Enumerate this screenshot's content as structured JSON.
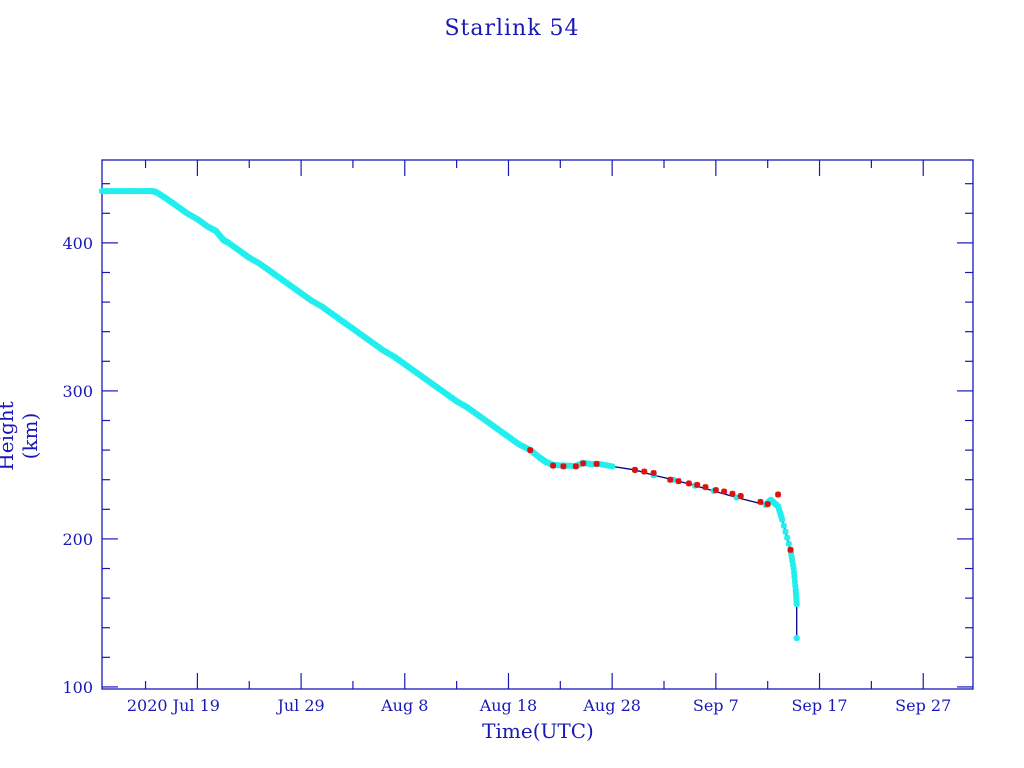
{
  "chart_data": {
    "type": "scatter",
    "title": "Starlink 54",
    "xlabel": "Time(UTC)",
    "ylabel": "Height (km)",
    "x_units": "days since 2020 Jul 19",
    "xlim": [
      -9.2,
      74.8
    ],
    "ylim": [
      98.6,
      456
    ],
    "x_major_ticks": [
      0,
      10,
      20,
      30,
      40,
      50,
      60,
      70
    ],
    "x_tick_labels": [
      "2020 Jul 19",
      "Jul 29",
      "Aug  8",
      "Aug 18",
      "Aug 28",
      "Sep  7",
      "Sep 17",
      "Sep 27"
    ],
    "x_minor_step": 5,
    "y_major_ticks": [
      100,
      200,
      300,
      400
    ],
    "y_tick_labels": [
      "100",
      "200",
      "300",
      "400"
    ],
    "y_minor_step": 20,
    "grid": false,
    "colors": {
      "axis": "#1818b8",
      "line": "#00008b",
      "cyan": "#22eeee",
      "red": "#dd1111"
    },
    "series": [
      {
        "name": "height",
        "marker": "cyan",
        "x": [
          -9.2,
          -8,
          -7,
          -6,
          -5,
          -4.3,
          -3.9,
          -3,
          -2,
          -1,
          0,
          1,
          1.8,
          2.5,
          3,
          4,
          5,
          6,
          7,
          8,
          9,
          10,
          11,
          12,
          13,
          14,
          15,
          16,
          17,
          18,
          19,
          20,
          21,
          22,
          23,
          24,
          25,
          26,
          27,
          28,
          29,
          30,
          31,
          32.1,
          33,
          33.6,
          34.3,
          35.5,
          36.5,
          37.2,
          38,
          38.7,
          40,
          42.2,
          44,
          45.9,
          48,
          49.8,
          52,
          54.8,
          55.3,
          56,
          56.4,
          57.2,
          57.5,
          57.7,
          57.8,
          57.8
        ],
        "y": [
          435,
          435,
          435,
          435,
          435,
          435,
          434,
          430,
          425,
          420,
          416,
          411,
          408,
          402,
          400,
          395,
          390,
          386,
          381,
          376,
          371,
          366,
          361,
          357,
          352,
          347,
          342,
          337,
          332,
          327,
          323,
          318,
          313,
          308,
          303,
          298,
          293,
          289,
          284,
          279,
          274,
          269,
          264,
          260,
          255,
          252,
          250,
          249.5,
          249.3,
          251.4,
          250.5,
          250.7,
          249,
          246.6,
          243,
          240,
          236,
          232.4,
          228,
          223,
          226.4,
          222,
          213,
          192.6,
          180,
          165.5,
          156,
          133
        ]
      },
      {
        "name": "flagged",
        "marker": "red",
        "x": [
          32.1,
          34.3,
          35.3,
          36.5,
          37.2,
          38.5,
          42.2,
          43.1,
          44,
          45.6,
          46.4,
          47.4,
          48.2,
          49,
          50,
          50.8,
          51.6,
          52.4,
          54.3,
          55,
          56,
          57.2
        ],
        "y": [
          260,
          249.5,
          249,
          249,
          251,
          250.7,
          246.6,
          245.5,
          244.5,
          240,
          239,
          237.5,
          236.5,
          235,
          233,
          232,
          230.5,
          229,
          225,
          223.5,
          230,
          192.6
        ]
      }
    ]
  }
}
